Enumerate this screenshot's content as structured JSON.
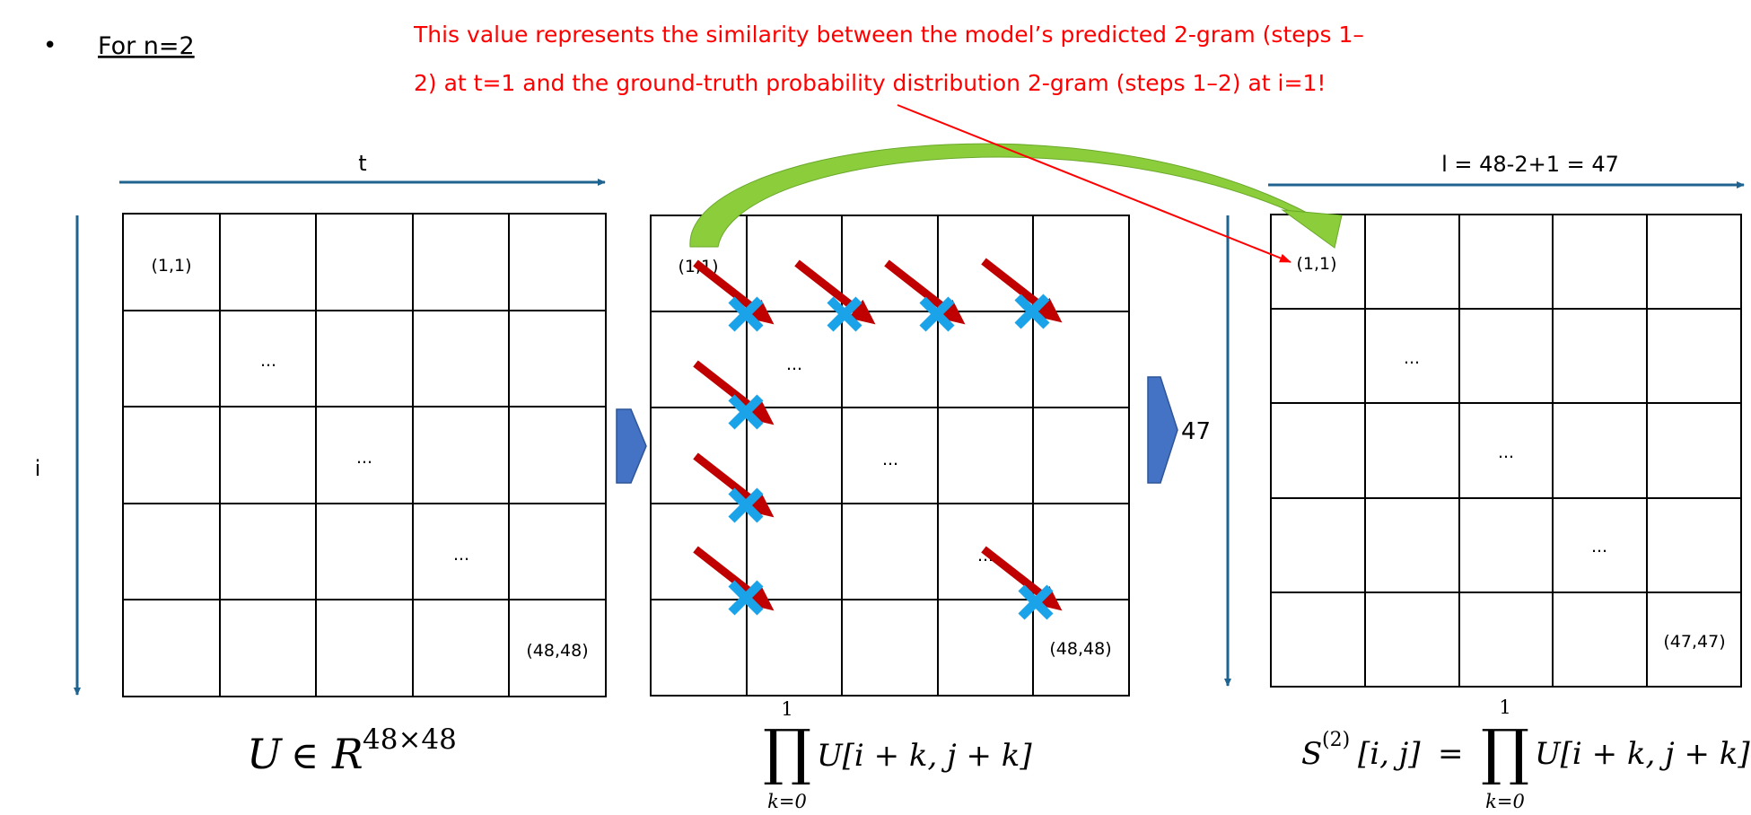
{
  "heading": {
    "bullet": "•",
    "text": "For n=2"
  },
  "annotation": {
    "line1": "This value represents the similarity between the model’s predicted 2-gram (steps 1–",
    "line2": "2) at t=1  and the ground-truth probability distribution 2-gram (steps 1–2) at i=1!",
    "color": "#ff0000"
  },
  "left_matrix": {
    "axis_t": "t",
    "axis_i": "i",
    "cell_top_left": "(1,1)",
    "diag_dots": "...",
    "cell_bottom_right": "(48,48)",
    "formula": {
      "symbol": "U",
      "in": "∈",
      "space": "R",
      "exponent": "48×48"
    }
  },
  "middle_matrix": {
    "cell_top_left": "(1,1)",
    "dots_a": "...",
    "dots_b": "...",
    "dots_c": "...",
    "cell_bottom_right": "(48,48)",
    "formula": {
      "op": "∏",
      "upper": "1",
      "lower": "k=0",
      "body": "U[i + k, j + k]"
    }
  },
  "transition": {
    "label": "47"
  },
  "right_matrix": {
    "axis_top": "l = 48-2+1 = 47",
    "cell_top_left": "(1,1)",
    "diag_dots": "...",
    "cell_bottom_right": "(47,47)",
    "formula": {
      "lhs": "S",
      "sup": "(2)",
      "idx": "[i, j]",
      "eq": "=",
      "op": "∏",
      "upper": "1",
      "lower": "k=0",
      "body": "U[i + k, j + k]"
    }
  },
  "colors": {
    "axis": "#1f6391",
    "block_arrow": "#4472c4",
    "curve_arrow": "#8ccd3c",
    "diag_arrow": "#c00000",
    "cross": "#1aa3e8",
    "pointer": "#ff0000"
  }
}
